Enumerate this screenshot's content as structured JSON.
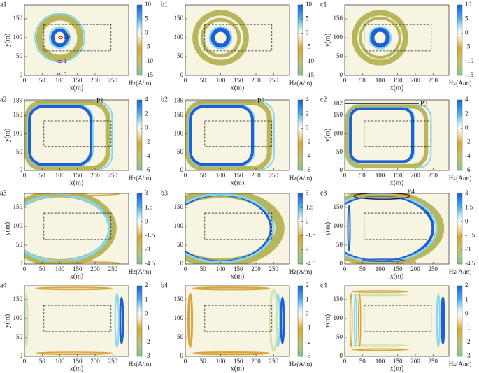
{
  "chart_data": [
    {
      "type": "heatmap",
      "panel_label": "a1",
      "xlabel": "x(m)",
      "ylabel": "y(m)",
      "xlim": [
        0,
        295
      ],
      "xticks": [
        0,
        50,
        100,
        150,
        200,
        250
      ],
      "ylim": [
        0,
        187
      ],
      "yticks": [
        0,
        50,
        100,
        150
      ],
      "colorbar_label": "Hz(A/m)",
      "clim": [
        -15,
        10
      ],
      "cticks": [
        -15,
        -10,
        -5,
        0,
        5,
        10
      ],
      "annotations": [
        "P0",
        "a",
        "b"
      ]
    },
    {
      "type": "heatmap",
      "panel_label": "b1",
      "xlabel": "x(m)",
      "xlim": [
        0,
        295
      ],
      "xticks": [
        0,
        50,
        100,
        150,
        200,
        250
      ],
      "ylim": [
        0,
        187
      ],
      "yticks": [
        0,
        50,
        100,
        150
      ],
      "colorbar_label": "Hz(A/m)",
      "clim": [
        -15,
        10
      ],
      "cticks": [
        -15,
        -10,
        -5,
        0,
        5,
        10
      ]
    },
    {
      "type": "heatmap",
      "panel_label": "c1",
      "xlabel": "x(m)",
      "ylabel": "y(m)",
      "xlim": [
        0,
        295
      ],
      "xticks": [
        0,
        50,
        100,
        150,
        200,
        250
      ],
      "ylim": [
        0,
        187
      ],
      "yticks": [
        0,
        50,
        100,
        150
      ],
      "colorbar_label": "Hz(A/m)",
      "clim": [
        -15,
        10
      ],
      "cticks": [
        -15,
        -10,
        -5,
        0,
        5,
        10
      ]
    },
    {
      "type": "heatmap",
      "panel_label": "a2",
      "xlabel": "x(m)",
      "ylabel": "y(m)",
      "xlim": [
        0,
        295
      ],
      "xticks": [
        0,
        50,
        100,
        150,
        200,
        250
      ],
      "ylim": [
        0,
        192
      ],
      "yticks": [
        0,
        50,
        100,
        150,
        189
      ],
      "colorbar_label": "Hz(A/m)",
      "clim": [
        -6,
        4
      ],
      "cticks": [
        -6,
        -4,
        -2,
        0,
        2,
        4
      ],
      "annotations": [
        "P1"
      ]
    },
    {
      "type": "heatmap",
      "panel_label": "b2",
      "xlabel": "x(m)",
      "xlim": [
        0,
        295
      ],
      "xticks": [
        0,
        50,
        100,
        150,
        200,
        250
      ],
      "ylim": [
        0,
        192
      ],
      "yticks": [
        0,
        50,
        100,
        150,
        189
      ],
      "colorbar_label": "Hz(A/m)",
      "clim": [
        -6,
        4
      ],
      "cticks": [
        -6,
        -4,
        -2,
        0,
        2,
        4
      ],
      "annotations": [
        "P2"
      ]
    },
    {
      "type": "heatmap",
      "panel_label": "c2",
      "xlabel": "x(m)",
      "ylabel": "y(m)",
      "xlim": [
        0,
        295
      ],
      "xticks": [
        0,
        50,
        100,
        150,
        200,
        250
      ],
      "ylim": [
        0,
        192
      ],
      "yticks": [
        0,
        50,
        100,
        150,
        182
      ],
      "colorbar_label": "Hz(A/m)",
      "clim": [
        -6,
        4
      ],
      "cticks": [
        -6,
        -4,
        -2,
        0,
        2,
        4
      ],
      "annotations": [
        "P3"
      ]
    },
    {
      "type": "heatmap",
      "panel_label": "a3",
      "xlabel": "x(m)",
      "ylabel": "y(m)",
      "xlim": [
        0,
        295
      ],
      "xticks": [
        0,
        50,
        100,
        150,
        200,
        250
      ],
      "ylim": [
        0,
        187
      ],
      "yticks": [
        0,
        50,
        100,
        150
      ],
      "colorbar_label": "Hz(A/m)",
      "clim": [
        -4.5,
        3
      ],
      "cticks": [
        -4.5,
        -3,
        -1.5,
        0,
        1.5,
        3
      ]
    },
    {
      "type": "heatmap",
      "panel_label": "b3",
      "xlabel": "x(m)",
      "xlim": [
        0,
        295
      ],
      "xticks": [
        0,
        50,
        100,
        150,
        200,
        250
      ],
      "ylim": [
        0,
        187
      ],
      "yticks": [
        0,
        50,
        100,
        150
      ],
      "colorbar_label": "Hz(A/m)",
      "clim": [
        -4.5,
        3
      ],
      "cticks": [
        -4.5,
        -3,
        -1.5,
        0,
        1.5,
        3
      ]
    },
    {
      "type": "heatmap",
      "panel_label": "c3",
      "xlabel": "x(m)",
      "ylabel": "y(m)",
      "xlim": [
        0,
        295
      ],
      "xticks": [
        0,
        50,
        100,
        150,
        200,
        250
      ],
      "ylim": [
        0,
        187
      ],
      "yticks": [
        0,
        50,
        100,
        150
      ],
      "colorbar_label": "Hz(A/m)",
      "clim": [
        -4.5,
        3
      ],
      "cticks": [
        -4.5,
        -3,
        -1.5,
        0,
        1.5,
        3
      ],
      "annotations": [
        "P4"
      ]
    },
    {
      "type": "heatmap",
      "panel_label": "a4",
      "xlabel": "x(m)",
      "ylabel": "y(m)",
      "xlim": [
        0,
        295
      ],
      "xticks": [
        0,
        50,
        100,
        150,
        200,
        250
      ],
      "ylim": [
        0,
        187
      ],
      "yticks": [
        0,
        50,
        100,
        150
      ],
      "colorbar_label": "Hz(A/m)",
      "clim": [
        -3,
        2
      ],
      "cticks": [
        -3,
        -2,
        -1,
        0,
        1,
        2
      ]
    },
    {
      "type": "heatmap",
      "panel_label": "b4",
      "xlabel": "x(m)",
      "xlim": [
        0,
        295
      ],
      "xticks": [
        0,
        50,
        100,
        150,
        200,
        250
      ],
      "ylim": [
        0,
        187
      ],
      "yticks": [
        0,
        50,
        100,
        150
      ],
      "colorbar_label": "Hz(A/m)",
      "clim": [
        -3,
        2
      ],
      "cticks": [
        -3,
        -2,
        -1,
        0,
        1,
        2
      ]
    },
    {
      "type": "heatmap",
      "panel_label": "c4",
      "xlabel": "x(m)",
      "ylabel": "y(m)",
      "xlim": [
        0,
        295
      ],
      "xticks": [
        0,
        50,
        100,
        150,
        200,
        250
      ],
      "ylim": [
        0,
        187
      ],
      "yticks": [
        0,
        50,
        100,
        150
      ],
      "colorbar_label": "Hz(A/m)",
      "clim": [
        -3,
        2
      ],
      "cticks": [
        -3,
        -2,
        -1,
        0,
        1,
        2
      ]
    }
  ]
}
